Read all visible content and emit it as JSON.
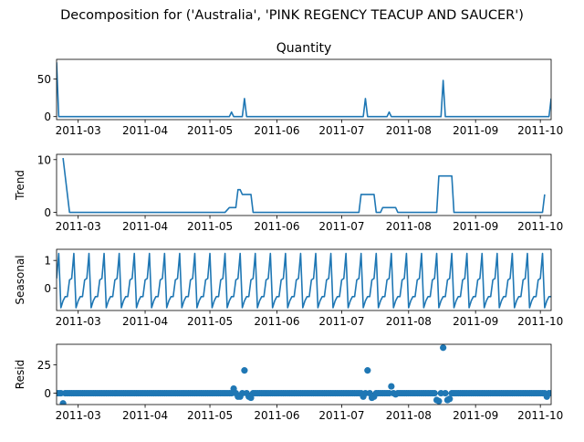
{
  "figure": {
    "suptitle": "Decomposition for ('Australia', 'PINK REGENCY TEACUP AND SAUCER')"
  },
  "colors": {
    "line": "#1f77b4",
    "axis": "#000000"
  },
  "chart_data": [
    {
      "type": "line",
      "title": "Quantity",
      "ylabel": "",
      "ylim": [
        -4,
        76
      ],
      "yticks": [
        0,
        50
      ],
      "x_start": "2011-02-19",
      "x_end": "2011-10-06",
      "xticks": [
        "2011-03",
        "2011-04",
        "2011-05",
        "2011-06",
        "2011-07",
        "2011-08",
        "2011-09",
        "2011-10"
      ],
      "baseline": 0,
      "points": [
        [
          "2011-02-19",
          72
        ],
        [
          "2011-02-20",
          0
        ],
        [
          "2011-05-10",
          0
        ],
        [
          "2011-05-11",
          6
        ],
        [
          "2011-05-12",
          0
        ],
        [
          "2011-05-16",
          0
        ],
        [
          "2011-05-17",
          24
        ],
        [
          "2011-05-18",
          0
        ],
        [
          "2011-07-11",
          0
        ],
        [
          "2011-07-12",
          24
        ],
        [
          "2011-07-13",
          0
        ],
        [
          "2011-07-22",
          0
        ],
        [
          "2011-07-23",
          6
        ],
        [
          "2011-07-24",
          0
        ],
        [
          "2011-08-16",
          0
        ],
        [
          "2011-08-17",
          48
        ],
        [
          "2011-08-18",
          0
        ],
        [
          "2011-10-05",
          0
        ],
        [
          "2011-10-06",
          24
        ]
      ]
    },
    {
      "type": "line",
      "title": "",
      "ylabel": "Trend",
      "ylim": [
        -0.6,
        11
      ],
      "yticks": [
        0,
        10
      ],
      "x_start": "2011-02-19",
      "x_end": "2011-10-06",
      "xticks": [
        "2011-03",
        "2011-04",
        "2011-05",
        "2011-06",
        "2011-07",
        "2011-08",
        "2011-09",
        "2011-10"
      ],
      "points": [
        [
          "2011-02-22",
          10.3
        ],
        [
          "2011-02-25",
          0
        ],
        [
          "2011-05-08",
          0
        ],
        [
          "2011-05-10",
          0.9
        ],
        [
          "2011-05-13",
          0.9
        ],
        [
          "2011-05-14",
          4.3
        ],
        [
          "2011-05-15",
          4.3
        ],
        [
          "2011-05-16",
          3.4
        ],
        [
          "2011-05-20",
          3.4
        ],
        [
          "2011-05-21",
          0
        ],
        [
          "2011-07-09",
          0
        ],
        [
          "2011-07-10",
          3.4
        ],
        [
          "2011-07-16",
          3.4
        ],
        [
          "2011-07-17",
          0
        ],
        [
          "2011-07-19",
          0
        ],
        [
          "2011-07-20",
          0.9
        ],
        [
          "2011-07-26",
          0.9
        ],
        [
          "2011-07-27",
          0
        ],
        [
          "2011-08-14",
          0
        ],
        [
          "2011-08-15",
          6.9
        ],
        [
          "2011-08-21",
          6.9
        ],
        [
          "2011-08-22",
          0
        ],
        [
          "2011-10-02",
          0
        ],
        [
          "2011-10-03",
          3.4
        ]
      ]
    },
    {
      "type": "line",
      "title": "",
      "ylabel": "Seasonal",
      "ylim": [
        -0.8,
        1.4
      ],
      "yticks": [
        0,
        1
      ],
      "x_start": "2011-02-19",
      "x_end": "2011-10-06",
      "xticks": [
        "2011-03",
        "2011-04",
        "2011-05",
        "2011-06",
        "2011-07",
        "2011-08",
        "2011-09",
        "2011-10"
      ],
      "period_days": 7,
      "weekly_pattern": [
        0.35,
        1.25,
        -0.7,
        -0.45,
        -0.3,
        -0.3,
        0.3
      ]
    },
    {
      "type": "scatter",
      "title": "",
      "ylabel": "Resid",
      "ylim": [
        -10,
        43
      ],
      "yticks": [
        0,
        25
      ],
      "x_start": "2011-02-19",
      "x_end": "2011-10-06",
      "xticks": [
        "2011-03",
        "2011-04",
        "2011-05",
        "2011-06",
        "2011-07",
        "2011-08",
        "2011-09",
        "2011-10"
      ],
      "reference_line": 0,
      "points": [
        [
          "2011-02-22",
          -9
        ],
        [
          "2011-05-12",
          4
        ],
        [
          "2011-05-14",
          -3
        ],
        [
          "2011-05-15",
          -3
        ],
        [
          "2011-05-17",
          20
        ],
        [
          "2011-05-19",
          -3
        ],
        [
          "2011-05-20",
          -4
        ],
        [
          "2011-07-11",
          -3
        ],
        [
          "2011-07-13",
          20
        ],
        [
          "2011-07-15",
          -4
        ],
        [
          "2011-07-16",
          -3
        ],
        [
          "2011-07-24",
          6
        ],
        [
          "2011-07-26",
          -1
        ],
        [
          "2011-08-14",
          -6
        ],
        [
          "2011-08-15",
          -7
        ],
        [
          "2011-08-17",
          40
        ],
        [
          "2011-08-19",
          -6
        ],
        [
          "2011-08-20",
          -5
        ],
        [
          "2011-10-04",
          -3
        ]
      ]
    }
  ]
}
